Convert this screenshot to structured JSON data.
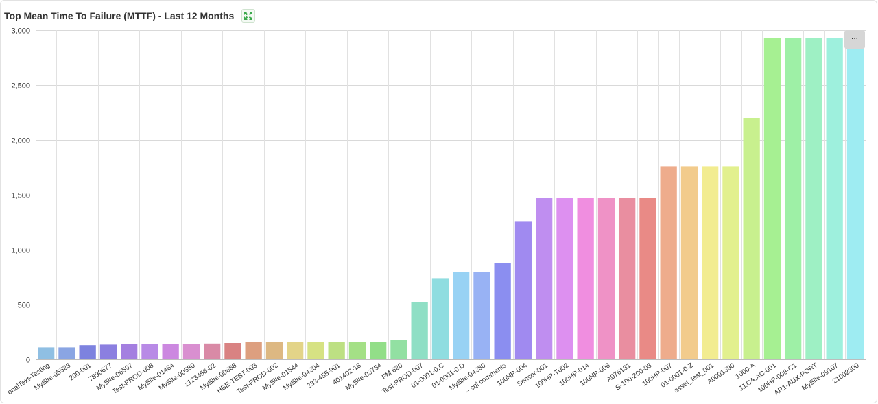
{
  "header": {
    "title": "Top Mean Time To Failure (MTTF) - Last 12 Months",
    "expand_icon": "expand-arrows-icon",
    "menu_label": "...",
    "menu_icon": "ellipsis-icon"
  },
  "chart_data": {
    "type": "bar",
    "title": "Top Mean Time To Failure (MTTF) - Last 12 Months",
    "xlabel": "",
    "ylabel": "",
    "ylim": [
      0,
      3000
    ],
    "yticks": [
      0,
      500,
      1000,
      1500,
      2000,
      2500,
      3000
    ],
    "ytick_labels": [
      "0",
      "500",
      "1,000",
      "1,500",
      "2,000",
      "2,500",
      "3,000"
    ],
    "grid": true,
    "legend": "none",
    "categories": [
      "onalText-Testing",
      "MySite-05523",
      "200-001",
      "7890677",
      "MySite-06597",
      "Test-PROD-008",
      "MySite-01484",
      "MySite-00580",
      "z123456-02",
      "MySite-00868",
      "HBE-TEST-003",
      "Test-PROD-002",
      "MySite-01544",
      "MySite-04204",
      "233-455-901",
      "401402-18",
      "MySite-03754",
      "FM 620",
      "Test-PROD-007",
      "01-0001-0.C",
      "01-0001-0.D",
      "MySite-04280",
      "-- sql comments",
      "100HP-004",
      "Sensor-001",
      "100HP-T002",
      "100HP-014",
      "100HP-006",
      "A076131",
      "S-100-200-03",
      "100HP-007",
      "01-0001-0.Z",
      "asset_test_001",
      "A0001390",
      "1000-A",
      "JJ.CA.AC-001",
      "100HP-008-C1",
      "AR1-AUX-PORT",
      "MySite-09107",
      "21002300"
    ],
    "values": [
      110,
      110,
      130,
      135,
      140,
      140,
      140,
      140,
      145,
      150,
      160,
      160,
      160,
      160,
      160,
      160,
      160,
      175,
      520,
      735,
      800,
      800,
      880,
      1260,
      1470,
      1470,
      1470,
      1470,
      1470,
      1470,
      1760,
      1760,
      1760,
      1760,
      2200,
      2930,
      2930,
      2930,
      2930,
      2930
    ],
    "colors": [
      "#8fbfe3",
      "#8aa5e3",
      "#7d82df",
      "#8b7fe0",
      "#a47fe0",
      "#b88ae6",
      "#cc88e0",
      "#d98fd0",
      "#d98aa6",
      "#d98282",
      "#dd9f7f",
      "#ddb882",
      "#e3d488",
      "#d6e283",
      "#bde083",
      "#a4e086",
      "#92de88",
      "#92e0a2",
      "#8fdfc5",
      "#8fdde0",
      "#98d2f4",
      "#98b2f4",
      "#8b8ef0",
      "#a08af0",
      "#bf8ef0",
      "#dd90f0",
      "#f08ee0",
      "#ef92c6",
      "#e98ea0",
      "#e98a86",
      "#eeac8c",
      "#f2cb8c",
      "#f2ec90",
      "#e2f08e",
      "#c8f08e",
      "#a6f092",
      "#9ef0a6",
      "#9ef0c4",
      "#9ef0dd",
      "#9eecf2"
    ]
  }
}
